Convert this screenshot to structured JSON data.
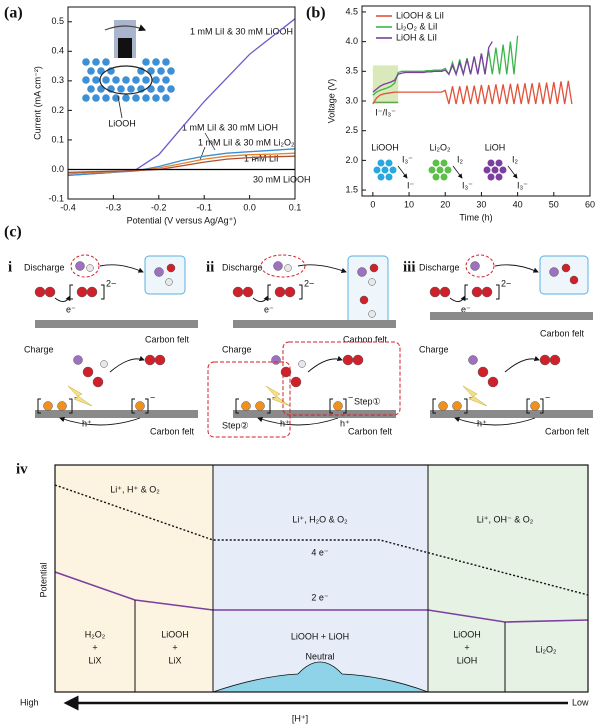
{
  "figure": {
    "panel_labels": [
      "(a)",
      "(b)",
      "(c)"
    ]
  },
  "chart_data": [
    {
      "type": "line",
      "xlabel": "Potential (V versus Ag/Ag⁺)",
      "ylabel": "Current (mA cm⁻²)",
      "x": [
        -0.4,
        -0.35,
        -0.3,
        -0.25,
        -0.2,
        -0.15,
        -0.1,
        -0.05,
        0,
        0.05,
        0.1
      ],
      "xlim": [
        -0.4,
        0.1
      ],
      "xticks": [
        -0.4,
        -0.3,
        -0.2,
        -0.1,
        {
          "value": 0,
          "label": "0.0"
        },
        0.1
      ],
      "ylim": [
        -0.1,
        0.55
      ],
      "yticks": [
        -0.1,
        {
          "value": 0,
          "label": "0.0"
        },
        0.1,
        0.2,
        0.3,
        0.4,
        0.5
      ],
      "series": [
        {
          "name": "1 mM LiI & 30 mM LiOOH",
          "color": "#6a5acd",
          "values": [
            -0.02,
            -0.015,
            -0.01,
            0.0,
            0.05,
            0.14,
            0.23,
            0.31,
            0.39,
            0.45,
            0.51
          ]
        },
        {
          "name": "1 mM LiI & 30 mM LiOH",
          "color": "#3a8fd0",
          "values": [
            -0.02,
            -0.015,
            -0.01,
            -0.005,
            0.01,
            0.03,
            0.045,
            0.055,
            0.06,
            0.065,
            0.07
          ]
        },
        {
          "name": "1 mM LiI & 30 mM Li₂O₂",
          "color": "#e8822a",
          "values": [
            -0.015,
            -0.01,
            -0.008,
            -0.005,
            0.005,
            0.02,
            0.035,
            0.045,
            0.05,
            0.052,
            0.055
          ]
        },
        {
          "name": "1 mM LiI",
          "color": "#b05030",
          "values": [
            -0.01,
            -0.008,
            -0.006,
            -0.004,
            0.0,
            0.012,
            0.025,
            0.035,
            0.04,
            0.043,
            0.045
          ]
        },
        {
          "name": "30 mM LiOOH",
          "color": "#000000",
          "values": [
            0,
            0,
            0,
            0,
            0,
            0,
            0,
            0,
            0,
            0,
            0
          ]
        }
      ],
      "inset_label": "LiOOH"
    },
    {
      "type": "line",
      "xlabel": "Time (h)",
      "ylabel": "Voltage (V)",
      "x": [
        0,
        1,
        2,
        3,
        4,
        5,
        6,
        7,
        8,
        9,
        10,
        11,
        12,
        13,
        14,
        15,
        16,
        17,
        18,
        19,
        20,
        21,
        22,
        23,
        24,
        25,
        26,
        27,
        28,
        29,
        30,
        31,
        32,
        33,
        34,
        35,
        36,
        37,
        38,
        39,
        40,
        41,
        42,
        43,
        44,
        45,
        46,
        47,
        48,
        49,
        50,
        51,
        52,
        53,
        54,
        55
      ],
      "xlim": [
        -3,
        60
      ],
      "xticks": [
        0,
        10,
        20,
        30,
        40,
        50,
        60
      ],
      "ylim": [
        1.4,
        4.6
      ],
      "yticks": [
        1.5,
        {
          "value": 2,
          "label": "2.0"
        },
        2.5,
        {
          "value": 3,
          "label": "3.0"
        },
        3.5,
        {
          "value": 4,
          "label": "4.0"
        },
        4.5
      ],
      "series": [
        {
          "name": "LiOOH & LiI",
          "color": "#e0533a",
          "values": [
            2.95,
            3.05,
            3.1,
            3.12,
            3.13,
            3.14,
            3.15,
            3.15,
            3.15,
            3.15,
            3.15,
            3.15,
            3.15,
            3.15,
            3.15,
            3.15,
            3.15,
            3.15,
            3.15,
            3.15,
            3.18,
            2.95,
            3.25,
            2.95,
            3.25,
            2.95,
            3.26,
            2.95,
            3.26,
            2.95,
            3.27,
            2.95,
            3.27,
            2.95,
            3.28,
            2.95,
            3.28,
            2.95,
            3.29,
            2.95,
            3.29,
            2.95,
            3.3,
            2.95,
            3.3,
            2.95,
            3.31,
            2.95,
            3.31,
            2.95,
            3.32,
            2.95,
            3.33,
            2.95,
            3.34,
            2.95
          ]
        },
        {
          "name": "Li₂O₂ & LiI",
          "color": "#3ab54a",
          "values": [
            3.1,
            3.15,
            3.18,
            3.2,
            3.22,
            3.25,
            3.3,
            3.48,
            3.5,
            3.5,
            3.5,
            3.5,
            3.5,
            3.5,
            3.5,
            3.51,
            3.51,
            3.52,
            3.52,
            3.52,
            3.55,
            3.45,
            3.65,
            3.45,
            3.7,
            3.45,
            3.72,
            3.45,
            3.75,
            3.45,
            3.8,
            3.45,
            3.85,
            3.45,
            3.9,
            3.45,
            3.95,
            3.45,
            4.0,
            3.45,
            4.1,
            null,
            null,
            null,
            null,
            null,
            null,
            null,
            null,
            null,
            null,
            null,
            null,
            null,
            null,
            null
          ]
        },
        {
          "name": "LiOH & LiI",
          "color": "#7b3fa0",
          "values": [
            3.15,
            3.2,
            3.25,
            3.28,
            3.3,
            3.32,
            3.35,
            3.45,
            3.47,
            3.48,
            3.48,
            3.48,
            3.48,
            3.48,
            3.48,
            3.49,
            3.49,
            3.5,
            3.5,
            3.5,
            3.52,
            3.45,
            3.6,
            3.45,
            3.65,
            3.45,
            3.7,
            3.45,
            3.75,
            3.45,
            3.8,
            3.45,
            3.9,
            4.0,
            null,
            null,
            null,
            null,
            null,
            null,
            null,
            null,
            null,
            null,
            null,
            null,
            null,
            null,
            null,
            null,
            null,
            null,
            null,
            null,
            null,
            null
          ]
        }
      ],
      "annotation": "I⁻/I₃⁻",
      "insets": [
        {
          "label": "LiOOH",
          "top": "I₃⁻",
          "bottom": "I⁻",
          "color": "#2aa7de"
        },
        {
          "label": "Li₂O₂",
          "top": "I₂",
          "bottom": "I₃⁻",
          "color": "#5cbf4a"
        },
        {
          "label": "LiOH",
          "top": "I₂",
          "bottom": "I₃⁻",
          "color": "#7b3fa0"
        }
      ]
    }
  ],
  "diagram_c": {
    "panels": [
      {
        "numeral": "i",
        "discharge": "Discharge",
        "electron": "e⁻",
        "dianion_charge": "2−",
        "substrate": "Carbon felt",
        "charge": "Charge",
        "hole": "h⁺",
        "radical_charge": "−"
      },
      {
        "numeral": "ii",
        "discharge": "Discharge",
        "electron": "e⁻",
        "dianion_charge": "2−",
        "substrate": "Carbon felt",
        "charge": "Charge",
        "hole": "h⁺",
        "radical_charge": "−",
        "step1": "Step①",
        "step2": "Step②"
      },
      {
        "numeral": "iii",
        "discharge": "Discharge",
        "electron": "e⁻",
        "dianion_charge": "2−",
        "substrate": "Carbon felt",
        "charge": "Charge",
        "hole": "h⁺",
        "radical_charge": "−"
      }
    ]
  },
  "diagram_iv": {
    "numeral": "iv",
    "y_label": "Potential",
    "x_label": "[H⁺]",
    "x_high": "High",
    "x_low": "Low",
    "regions": [
      "Li⁺, H⁺ & O₂",
      "Li⁺, H₂O & O₂",
      "Li⁺, OH⁻ & O₂"
    ],
    "four_electron": "4 e⁻",
    "two_electron": "2 e⁻",
    "products": [
      [
        "H₂O₂",
        "+",
        "LiX"
      ],
      [
        "LiOOH",
        "+",
        "LiX"
      ],
      [
        "LiOOH + LiOH"
      ],
      [
        "LiOOH",
        "+",
        "LiOH"
      ],
      [
        "Li₂O₂"
      ]
    ],
    "neutral": "Neutral"
  }
}
